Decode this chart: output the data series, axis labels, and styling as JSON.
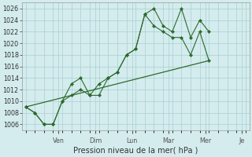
{
  "background_color": "#d4ecee",
  "grid_color": "#aacfcf",
  "line_color": "#2d6a2d",
  "marker_color": "#2d6a2d",
  "xlabel": "Pression niveau de la mer( hPa )",
  "ylim": [
    1005,
    1027
  ],
  "yticks": [
    1006,
    1008,
    1010,
    1012,
    1014,
    1016,
    1018,
    1020,
    1022,
    1024,
    1026
  ],
  "xtick_labels": [
    "Ven",
    "Dim",
    "Lun",
    "Mar",
    "Mer",
    "Je",
    ""
  ],
  "series1_x": [
    0,
    0.25,
    0.5,
    0.75,
    1.0,
    1.25,
    1.5,
    1.75,
    2.0,
    2.25,
    2.5,
    2.75,
    3.0,
    3.25,
    3.5,
    3.75,
    4.0,
    4.25,
    4.5,
    4.75,
    5.0
  ],
  "series1_y": [
    1009,
    1008,
    1006,
    1006,
    1010,
    1013,
    1014,
    1011,
    1011,
    1014,
    1015,
    1018,
    1019,
    1025,
    1026,
    1023,
    1022,
    1026,
    1021,
    1024,
    1022
  ],
  "series2_x": [
    0,
    0.25,
    0.5,
    0.75,
    1.0,
    1.25,
    1.5,
    1.75,
    2.0,
    2.25,
    2.5,
    2.75,
    3.0,
    3.25,
    3.5,
    3.75,
    4.0,
    4.25,
    4.5,
    4.75,
    5.0
  ],
  "series2_y": [
    1009,
    1008,
    1006,
    1006,
    1010,
    1011,
    1012,
    1011,
    1013,
    1014,
    1015,
    1018,
    1019,
    1025,
    1023,
    1022,
    1021,
    1021,
    1018,
    1022,
    1017
  ],
  "series3_x": [
    0,
    5.0
  ],
  "series3_y": [
    1009,
    1017
  ],
  "xlim": [
    -0.1,
    6.1
  ],
  "day_tick_x": [
    0.9,
    1.9,
    2.9,
    3.9,
    4.9,
    5.9
  ],
  "day_labels": [
    "Ven",
    "Dim",
    "Lun",
    "Mar",
    "Mer",
    "Je"
  ],
  "xlabel_fontsize": 7.0,
  "ytick_fontsize": 5.8,
  "xtick_fontsize": 5.8
}
